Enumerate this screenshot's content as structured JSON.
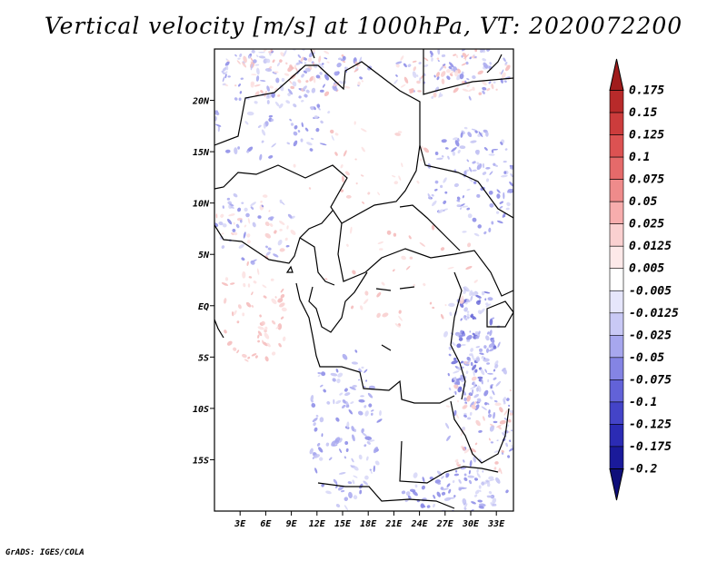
{
  "title": "Vertical velocity [m/s] at 1000hPa, VT: 2020072200",
  "credit": "GrADS: IGES/COLA",
  "chart_data": {
    "type": "heatmap",
    "title": "Vertical velocity [m/s] at 1000hPa, VT: 2020072200",
    "variable": "Vertical velocity",
    "units": "m/s",
    "level": "1000hPa",
    "valid_time": "2020072200",
    "lon_range": [
      0,
      35
    ],
    "lat_range": [
      -20,
      25
    ],
    "x_ticks": [
      {
        "value": 3,
        "label": "3E"
      },
      {
        "value": 6,
        "label": "6E"
      },
      {
        "value": 9,
        "label": "9E"
      },
      {
        "value": 12,
        "label": "12E"
      },
      {
        "value": 15,
        "label": "15E"
      },
      {
        "value": 18,
        "label": "18E"
      },
      {
        "value": 21,
        "label": "21E"
      },
      {
        "value": 24,
        "label": "24E"
      },
      {
        "value": 27,
        "label": "27E"
      },
      {
        "value": 30,
        "label": "30E"
      },
      {
        "value": 33,
        "label": "33E"
      }
    ],
    "y_ticks": [
      {
        "value": 20,
        "label": "20N"
      },
      {
        "value": 15,
        "label": "15N"
      },
      {
        "value": 10,
        "label": "10N"
      },
      {
        "value": 5,
        "label": "5N"
      },
      {
        "value": 0,
        "label": "EQ"
      },
      {
        "value": -5,
        "label": "5S"
      },
      {
        "value": -10,
        "label": "10S"
      },
      {
        "value": -15,
        "label": "15S"
      }
    ],
    "colorbar": {
      "labels": [
        "0.175",
        "0.15",
        "0.125",
        "0.1",
        "0.075",
        "0.05",
        "0.025",
        "0.0125",
        "0.005",
        "-0.005",
        "-0.0125",
        "-0.025",
        "-0.05",
        "-0.075",
        "-0.1",
        "-0.125",
        "-0.175",
        "-0.2"
      ],
      "colors": [
        "#a01c1c",
        "#b82a2a",
        "#cc3c3c",
        "#dc5252",
        "#e56a6a",
        "#ef8b8b",
        "#f7adad",
        "#fad0d0",
        "#fde9e9",
        "#ffffff",
        "#e6e6fb",
        "#c9c9f5",
        "#a7a7ee",
        "#8484e4",
        "#6262d8",
        "#4444c8",
        "#2b2bb4",
        "#1a1a9a",
        "#0f0f7a"
      ]
    }
  }
}
